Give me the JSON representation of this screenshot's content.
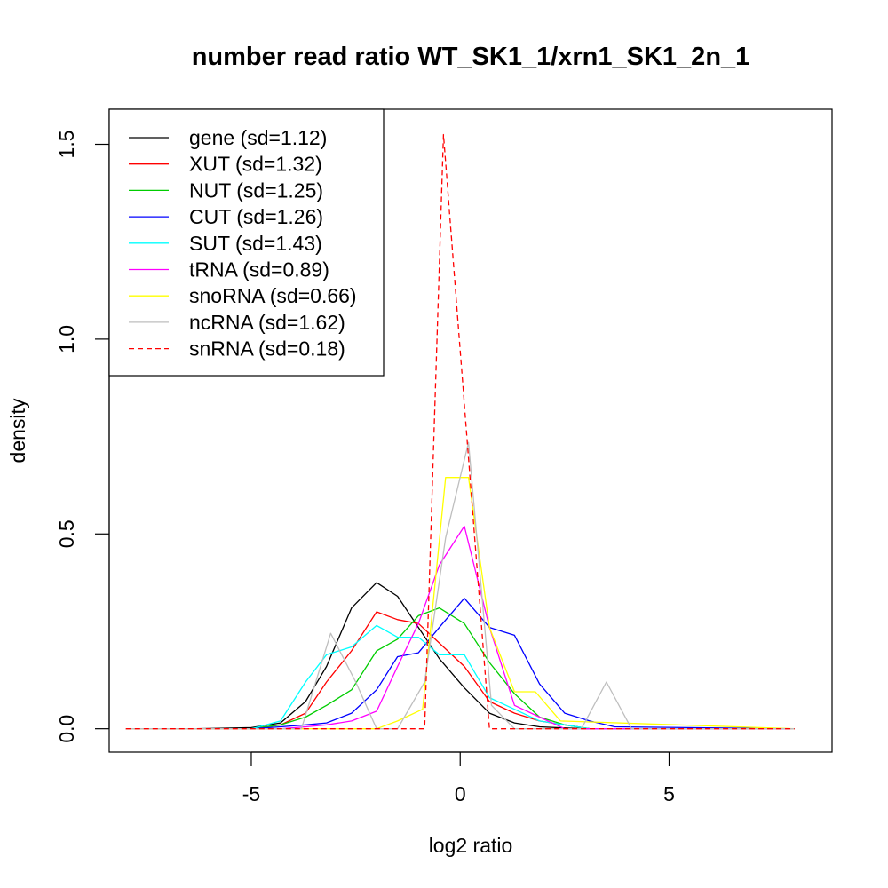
{
  "chart_data": {
    "type": "line",
    "title": "number read ratio WT_SK1_1/xrn1_SK1_2n_1",
    "xlabel": "log2 ratio",
    "ylabel": "density",
    "xlim": [
      -8.4,
      8.9
    ],
    "ylim": [
      -0.06,
      1.59
    ],
    "x_ticks": [
      -5,
      0,
      5
    ],
    "x_tick_labels": [
      "-5",
      "0",
      "5"
    ],
    "y_ticks": [
      0.0,
      0.5,
      1.0,
      1.5
    ],
    "y_tick_labels": [
      "0.0",
      "0.5",
      "1.0",
      "1.5"
    ],
    "grid": false,
    "legend_position": "top-left",
    "series": [
      {
        "name": "gene (sd=1.12)",
        "color": "#000000",
        "dashed": false,
        "x": [
          -8,
          -6.3,
          -5,
          -4.3,
          -3.7,
          -3.2,
          -2.6,
          -2.0,
          -1.5,
          -1.0,
          -0.5,
          0.1,
          0.7,
          1.3,
          1.9,
          2.5,
          3.1,
          8
        ],
        "y": [
          0,
          0,
          0.003,
          0.015,
          0.07,
          0.16,
          0.31,
          0.375,
          0.34,
          0.26,
          0.18,
          0.105,
          0.04,
          0.015,
          0.005,
          0.002,
          0,
          0
        ]
      },
      {
        "name": "XUT (sd=1.32)",
        "color": "#ff0000",
        "dashed": false,
        "x": [
          -8,
          -5,
          -4.3,
          -3.7,
          -3.2,
          -2.6,
          -2.0,
          -1.5,
          -1.0,
          -0.5,
          0.1,
          0.7,
          1.3,
          1.9,
          2.5,
          3.1,
          8
        ],
        "y": [
          0,
          0,
          0.01,
          0.04,
          0.12,
          0.2,
          0.3,
          0.28,
          0.27,
          0.22,
          0.16,
          0.07,
          0.04,
          0.02,
          0.01,
          0,
          0
        ]
      },
      {
        "name": "NUT (sd=1.25)",
        "color": "#00cd00",
        "dashed": false,
        "x": [
          -8,
          -5,
          -4.3,
          -3.7,
          -3.2,
          -2.6,
          -2.0,
          -1.5,
          -1.0,
          -0.5,
          0.1,
          0.7,
          1.3,
          1.9,
          2.5,
          3.1,
          8
        ],
        "y": [
          0,
          0,
          0.01,
          0.03,
          0.06,
          0.1,
          0.2,
          0.23,
          0.29,
          0.31,
          0.27,
          0.17,
          0.09,
          0.03,
          0.01,
          0,
          0
        ]
      },
      {
        "name": "CUT (sd=1.26)",
        "color": "#0000ff",
        "dashed": false,
        "x": [
          -8,
          -5,
          -4.3,
          -3.7,
          -3.2,
          -2.6,
          -2.0,
          -1.5,
          -1.0,
          -0.5,
          0.1,
          0.7,
          1.3,
          1.9,
          2.5,
          3.1,
          3.7,
          8
        ],
        "y": [
          0,
          0,
          0.005,
          0.01,
          0.015,
          0.04,
          0.1,
          0.185,
          0.195,
          0.26,
          0.335,
          0.26,
          0.24,
          0.115,
          0.04,
          0.02,
          0.005,
          0
        ]
      },
      {
        "name": "SUT (sd=1.43)",
        "color": "#00ffff",
        "dashed": false,
        "x": [
          -8,
          -5,
          -4.3,
          -3.7,
          -3.2,
          -2.6,
          -2.0,
          -1.5,
          -1.0,
          -0.5,
          0.1,
          0.7,
          1.3,
          1.9,
          2.5,
          3.1,
          8
        ],
        "y": [
          0,
          0,
          0.02,
          0.12,
          0.19,
          0.21,
          0.265,
          0.235,
          0.235,
          0.19,
          0.19,
          0.08,
          0.05,
          0.02,
          0.01,
          0,
          0
        ]
      },
      {
        "name": "tRNA (sd=0.89)",
        "color": "#ff00ff",
        "dashed": false,
        "x": [
          -8,
          -5,
          -4.3,
          -3.7,
          -3.2,
          -2.6,
          -2.0,
          -1.5,
          -1.0,
          -0.5,
          0.1,
          0.7,
          1.3,
          1.9,
          2.5,
          3.1,
          8
        ],
        "y": [
          0,
          0,
          0,
          0.005,
          0.01,
          0.02,
          0.045,
          0.16,
          0.27,
          0.42,
          0.52,
          0.26,
          0.06,
          0.03,
          0,
          0,
          0
        ]
      },
      {
        "name": "snoRNA (sd=0.66)",
        "color": "#ffff00",
        "dashed": false,
        "x": [
          -8,
          -2.0,
          -1.5,
          -0.9,
          -0.35,
          0.2,
          0.7,
          1.3,
          1.8,
          2.4,
          8
        ],
        "y": [
          0,
          0,
          0.02,
          0.05,
          0.645,
          0.645,
          0.26,
          0.095,
          0.095,
          0.02,
          0
        ]
      },
      {
        "name": "ncRNA (sd=1.62)",
        "color": "#bebebe",
        "dashed": false,
        "x": [
          -8,
          -3.8,
          -3.1,
          -2.5,
          -2.0,
          -1.5,
          -0.85,
          -0.35,
          0.2,
          0.75,
          1.3,
          2.9,
          3.5,
          4.1,
          8
        ],
        "y": [
          0,
          0,
          0.245,
          0.12,
          0,
          0,
          0.12,
          0.49,
          0.735,
          0.06,
          0,
          0,
          0.12,
          0,
          0
        ]
      },
      {
        "name": "snRNA (sd=0.18)",
        "color": "#ff0000",
        "dashed": true,
        "x": [
          -8,
          -0.85,
          -0.4,
          0.7,
          8
        ],
        "y": [
          0,
          0,
          1.525,
          0,
          0
        ]
      }
    ]
  }
}
